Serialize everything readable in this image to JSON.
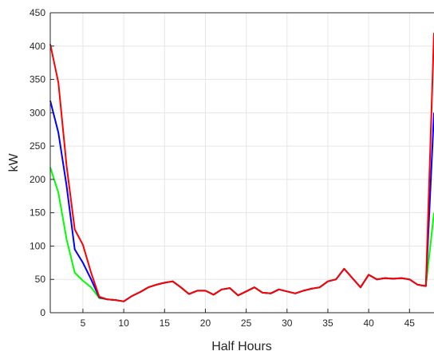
{
  "chart_data": {
    "type": "line",
    "title": "",
    "xlabel": "Half Hours",
    "ylabel": "kW",
    "xlim": [
      1,
      48
    ],
    "ylim": [
      0,
      450
    ],
    "xticks": [
      5,
      10,
      15,
      20,
      25,
      30,
      35,
      40,
      45
    ],
    "yticks": [
      0,
      50,
      100,
      150,
      200,
      250,
      300,
      350,
      400,
      450
    ],
    "grid": true,
    "legend": false,
    "x": [
      1,
      2,
      3,
      4,
      5,
      6,
      7,
      8,
      9,
      10,
      11,
      12,
      13,
      14,
      15,
      16,
      17,
      18,
      19,
      20,
      21,
      22,
      23,
      24,
      25,
      26,
      27,
      28,
      29,
      30,
      31,
      32,
      33,
      34,
      35,
      36,
      37,
      38,
      39,
      40,
      41,
      42,
      43,
      44,
      45,
      46,
      47,
      48
    ],
    "series": [
      {
        "color": "#00ff00",
        "values": [
          218,
          180,
          110,
          60,
          48,
          38,
          22,
          20,
          19,
          17,
          25,
          31,
          38,
          42,
          45,
          47,
          38,
          28,
          33,
          33,
          27,
          35,
          37,
          26,
          32,
          38,
          30,
          29,
          35,
          32,
          29,
          33,
          36,
          38,
          47,
          50,
          66,
          52,
          38,
          57,
          50,
          52,
          51,
          52,
          50,
          42,
          40,
          150
        ]
      },
      {
        "color": "#0000ff",
        "values": [
          318,
          270,
          190,
          95,
          75,
          50,
          23,
          20,
          19,
          17,
          25,
          31,
          38,
          42,
          45,
          47,
          38,
          28,
          33,
          33,
          27,
          35,
          37,
          26,
          32,
          38,
          30,
          29,
          35,
          32,
          29,
          33,
          36,
          38,
          47,
          50,
          66,
          52,
          38,
          57,
          50,
          52,
          51,
          52,
          50,
          42,
          40,
          300
        ]
      },
      {
        "color": "#ff0000",
        "values": [
          403,
          345,
          220,
          125,
          102,
          60,
          24,
          20,
          19,
          17,
          25,
          31,
          38,
          42,
          45,
          47,
          38,
          28,
          33,
          33,
          27,
          35,
          37,
          26,
          32,
          38,
          30,
          29,
          35,
          32,
          29,
          33,
          36,
          38,
          47,
          50,
          66,
          52,
          38,
          57,
          50,
          52,
          51,
          52,
          50,
          42,
          40,
          420
        ]
      }
    ]
  }
}
